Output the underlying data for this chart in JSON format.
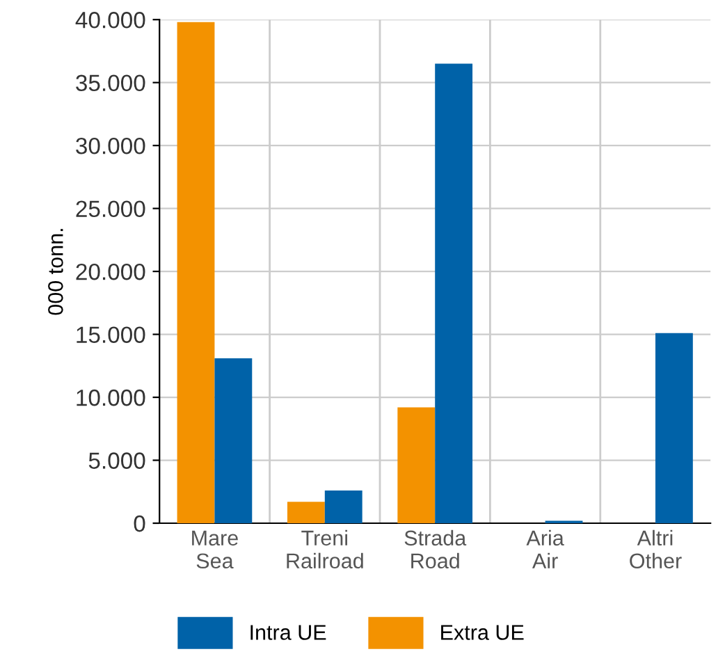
{
  "chart_data": {
    "type": "bar",
    "ylabel": "000 tonn.",
    "categories": [
      "Mare\nSea",
      "Treni\nRailroad",
      "Strada\nRoad",
      "Aria\nAir",
      "Altri\nOther"
    ],
    "series": [
      {
        "name": "Extra UE",
        "color": "#f39200",
        "values": [
          39800,
          1700,
          9200,
          0,
          0
        ]
      },
      {
        "name": "Intra UE",
        "color": "#0062a8",
        "values": [
          13100,
          2600,
          36500,
          200,
          15100
        ]
      }
    ],
    "ylim": [
      0,
      40000
    ],
    "yticks": [
      {
        "value": 0,
        "label": "0"
      },
      {
        "value": 5000,
        "label": "5.000"
      },
      {
        "value": 10000,
        "label": "10.000"
      },
      {
        "value": 15000,
        "label": "15.000"
      },
      {
        "value": 20000,
        "label": "20.000"
      },
      {
        "value": 25000,
        "label": "25.000"
      },
      {
        "value": 30000,
        "label": "30.000"
      },
      {
        "value": 35000,
        "label": "35.000"
      },
      {
        "value": 40000,
        "label": "40.000"
      }
    ],
    "grid": true,
    "legend": "bottom"
  }
}
